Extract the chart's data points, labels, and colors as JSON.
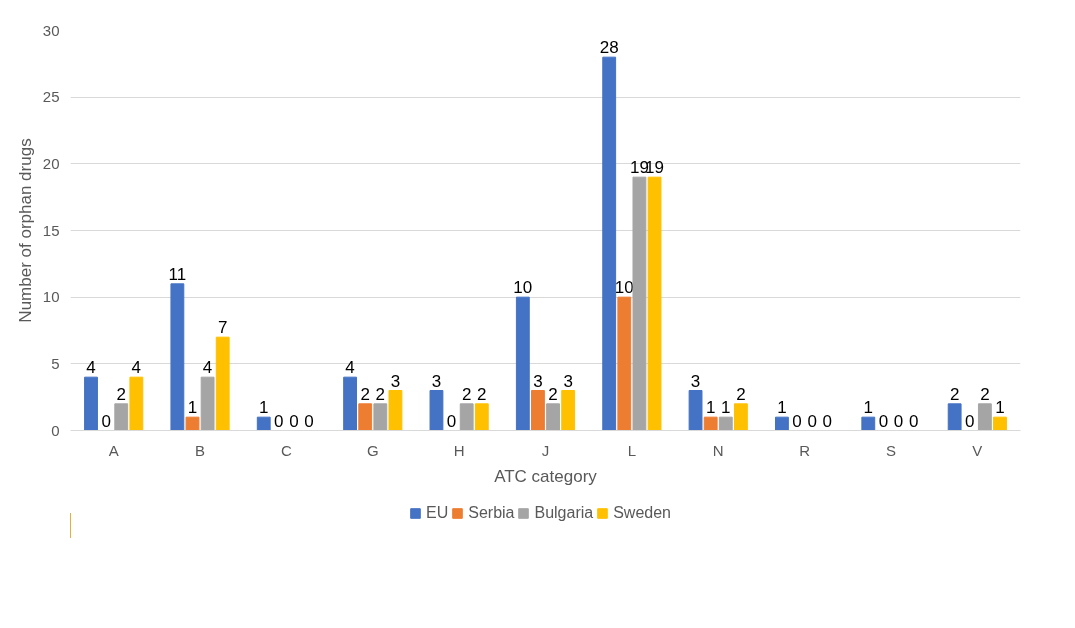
{
  "chart_data": {
    "type": "bar",
    "xlabel": "ATC category",
    "ylabel": "Number of orphan drugs",
    "categories": [
      "A",
      "B",
      "C",
      "G",
      "H",
      "J",
      "L",
      "N",
      "R",
      "S",
      "V"
    ],
    "series": [
      {
        "name": "EU",
        "color": "#4472c4",
        "values": [
          4,
          11,
          1,
          4,
          3,
          10,
          28,
          3,
          1,
          1,
          2
        ]
      },
      {
        "name": "Serbia",
        "color": "#ed7d31",
        "values": [
          0,
          1,
          0,
          2,
          0,
          3,
          10,
          1,
          0,
          0,
          0
        ]
      },
      {
        "name": "Bulgaria",
        "color": "#a5a5a5",
        "values": [
          2,
          4,
          0,
          2,
          2,
          2,
          19,
          1,
          0,
          0,
          2
        ]
      },
      {
        "name": "Sweden",
        "color": "#ffc000",
        "values": [
          4,
          7,
          0,
          3,
          2,
          3,
          19,
          2,
          0,
          0,
          1
        ]
      }
    ],
    "ylim": [
      0,
      30
    ],
    "yticks": [
      0,
      5,
      10,
      15,
      20,
      25,
      30
    ],
    "grid": "y",
    "legend": "bottom",
    "data_labels": true
  }
}
